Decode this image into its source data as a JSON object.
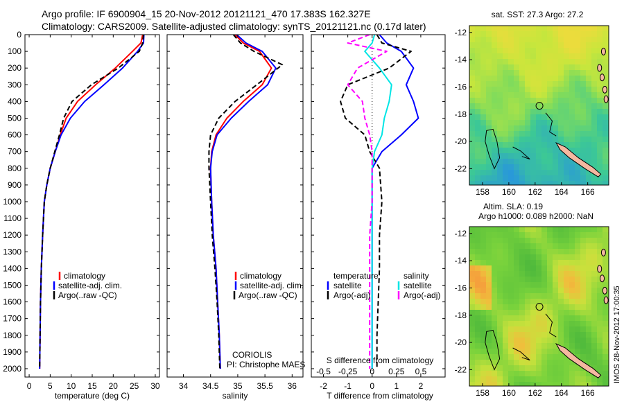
{
  "header": {
    "title_line1": "Argo profile: IF 6900904_15 20-Nov-2012 20121121_470 17.383S 162.327E",
    "title_line2": "Climatology: CARS2009. Satellite-adjusted climatology: synTS_20121121.nc (0.17d later)"
  },
  "footer": {
    "timestamp": "IMOS 28-Nov-2012 17:00:35"
  },
  "colors": {
    "climatology": "#ff0000",
    "satellite": "#0000ff",
    "argo": "#000000",
    "salinity_satellite": "#00e5e5",
    "salinity_argo": "#ff00ff",
    "coast_fill": "#f4b8a0"
  },
  "chart_data": [
    {
      "type": "line",
      "xlabel": "temperature (deg C)",
      "ylabel": "",
      "xlim": [
        -1,
        31
      ],
      "ylim": [
        2050,
        0
      ],
      "xticks": [
        0,
        5,
        10,
        15,
        20,
        25,
        30
      ],
      "yticks": [
        0,
        100,
        200,
        300,
        400,
        500,
        600,
        700,
        800,
        900,
        1000,
        1100,
        1200,
        1300,
        1400,
        1500,
        1600,
        1700,
        1800,
        1900,
        2000
      ],
      "legend": [
        "climatology",
        "satellite-adj. clim.",
        "Argo(..raw -QC)"
      ],
      "legend_position": "lower-center",
      "annotations": [],
      "series": [
        {
          "name": "climatology",
          "color": "#ff0000",
          "dash": "",
          "x": [
            27.0,
            26.6,
            24.6,
            20.5,
            15.8,
            11.5,
            8.8,
            7.4,
            6.2,
            5.0,
            4.2,
            3.6,
            3.2,
            2.9,
            2.7,
            2.6,
            2.5
          ],
          "y": [
            0,
            50,
            100,
            200,
            300,
            400,
            500,
            600,
            700,
            800,
            900,
            1000,
            1200,
            1400,
            1600,
            1800,
            2000
          ]
        },
        {
          "name": "satellite-adj. clim.",
          "color": "#0000ff",
          "dash": "",
          "x": [
            27.3,
            27.2,
            25.8,
            22.2,
            17.8,
            13.2,
            9.8,
            7.6,
            6.2,
            5.0,
            4.2,
            3.6,
            3.2,
            2.9,
            2.7,
            2.6,
            2.5
          ],
          "y": [
            0,
            50,
            100,
            200,
            300,
            400,
            500,
            600,
            700,
            800,
            900,
            1000,
            1200,
            1400,
            1600,
            1800,
            2000
          ]
        },
        {
          "name": "Argo(..raw -QC)",
          "color": "#000000",
          "dash": "7,4",
          "x": [
            27.2,
            27.0,
            26.2,
            21.2,
            14.8,
            10.2,
            8.2,
            7.2,
            6.1,
            5.0,
            4.2,
            3.6,
            3.2,
            2.9,
            2.7,
            2.6,
            2.5
          ],
          "y": [
            0,
            50,
            100,
            200,
            300,
            400,
            500,
            600,
            700,
            800,
            900,
            1000,
            1200,
            1400,
            1600,
            1800,
            2000
          ]
        }
      ]
    },
    {
      "type": "line",
      "xlabel": "salinity",
      "ylabel": "",
      "xlim": [
        33.7,
        36.2
      ],
      "ylim": [
        2050,
        0
      ],
      "xticks": [
        34,
        34.5,
        35,
        35.5,
        36
      ],
      "yticks": [
        0,
        100,
        200,
        300,
        400,
        500,
        600,
        700,
        800,
        900,
        1000,
        1100,
        1200,
        1300,
        1400,
        1500,
        1600,
        1700,
        1800,
        1900,
        2000
      ],
      "legend": [
        "climatology",
        "satellite-adj. clim.",
        "Argo(..raw -QC)"
      ],
      "legend_position": "lower-right",
      "annotations": [
        "CORIOLIS",
        "PI: Christophe MAES"
      ],
      "series": [
        {
          "name": "climatology",
          "color": "#ff0000",
          "dash": "",
          "x": [
            34.95,
            35.1,
            35.4,
            35.62,
            35.45,
            35.1,
            34.8,
            34.6,
            34.52,
            34.5,
            34.52,
            34.55,
            34.6,
            34.63,
            34.66,
            34.68
          ],
          "y": [
            0,
            50,
            100,
            200,
            300,
            400,
            500,
            600,
            700,
            800,
            1000,
            1200,
            1400,
            1600,
            1800,
            2000
          ]
        },
        {
          "name": "satellite-adj. clim.",
          "color": "#0000ff",
          "dash": "",
          "x": [
            34.98,
            35.15,
            35.45,
            35.7,
            35.55,
            35.2,
            34.88,
            34.62,
            34.53,
            34.5,
            34.52,
            34.55,
            34.6,
            34.63,
            34.66,
            34.68
          ],
          "y": [
            0,
            50,
            100,
            200,
            300,
            400,
            500,
            600,
            700,
            800,
            1000,
            1200,
            1400,
            1600,
            1800,
            2000
          ]
        },
        {
          "name": "Argo(..raw -QC)",
          "color": "#000000",
          "dash": "7,4",
          "x": [
            34.92,
            35.05,
            35.3,
            35.82,
            35.35,
            34.95,
            34.65,
            34.5,
            34.47,
            34.47,
            34.5,
            34.53,
            34.58,
            34.62,
            34.65,
            34.67
          ],
          "y": [
            0,
            50,
            100,
            180,
            300,
            400,
            500,
            600,
            700,
            800,
            1000,
            1200,
            1400,
            1600,
            1800,
            2000
          ]
        }
      ]
    },
    {
      "type": "line",
      "xlabel": "T difference from climatology",
      "ylabel": "",
      "title_bottom": "S difference from climatology",
      "xlim": [
        -2.5,
        3
      ],
      "ylim": [
        2050,
        0
      ],
      "xticks": [
        -2,
        -1,
        0,
        1,
        2
      ],
      "s_ticks": [
        "-0.5",
        "-0.25",
        "0",
        "0.25",
        "0.5"
      ],
      "yticks": [
        0,
        100,
        200,
        300,
        400,
        500,
        600,
        700,
        800,
        900,
        1000,
        1100,
        1200,
        1300,
        1400,
        1500,
        1600,
        1700,
        1800,
        1900,
        2000
      ],
      "legend_temperature_title": "temperature",
      "legend_salinity_title": "salinity",
      "legend_temperature": [
        "satellite",
        "Argo(-adj)"
      ],
      "legend_salinity": [
        "satellite",
        "Argo(-adj)"
      ],
      "legend_position": "lower-center",
      "series": [
        {
          "name": "temperature satellite",
          "color": "#0000ff",
          "dash": "",
          "x": [
            0.3,
            0.6,
            1.2,
            1.7,
            1.4,
            1.7,
            1.9,
            1.2,
            0.4,
            0.0,
            0.0,
            0.0,
            0.0,
            0.0,
            0.0
          ],
          "y": [
            0,
            50,
            100,
            200,
            300,
            400,
            500,
            600,
            700,
            800,
            1000,
            1200,
            1400,
            1800,
            2000
          ]
        },
        {
          "name": "temperature Argo(-adj)",
          "color": "#000000",
          "dash": "7,4",
          "x": [
            0.2,
            0.4,
            1.6,
            0.7,
            -1.0,
            -1.3,
            -1.1,
            -0.3,
            -0.1,
            0.3,
            0.4,
            0.3,
            0.3,
            0.2,
            0.2
          ],
          "y": [
            0,
            50,
            100,
            200,
            300,
            400,
            500,
            600,
            700,
            800,
            1000,
            1200,
            1400,
            1800,
            2000
          ]
        },
        {
          "name": "salinity satellite",
          "color": "#00e5e5",
          "dash": "",
          "x": [
            0.1,
            0.0,
            -0.3,
            0.3,
            0.8,
            0.7,
            0.5,
            0.4,
            0.1,
            0.0,
            0.0,
            0.0,
            0.0,
            0.0,
            0.0
          ],
          "y": [
            0,
            50,
            100,
            200,
            300,
            400,
            500,
            600,
            700,
            800,
            1000,
            1200,
            1400,
            1800,
            2000
          ]
        },
        {
          "name": "salinity Argo(-adj)",
          "color": "#ff00ff",
          "dash": "7,4",
          "x": [
            -0.1,
            -1.0,
            0.6,
            -0.6,
            -1.0,
            -0.4,
            -0.3,
            -0.1,
            0.0,
            0.0,
            0.0,
            -0.1,
            -0.1,
            -0.1,
            -0.1
          ],
          "y": [
            0,
            50,
            100,
            200,
            300,
            400,
            500,
            600,
            700,
            800,
            1000,
            1200,
            1400,
            1800,
            2000
          ]
        }
      ]
    },
    {
      "type": "heatmap",
      "title": "sat. SST: 27.3 Argo: 27.2",
      "xlim": [
        157,
        167.6
      ],
      "ylim": [
        -23.2,
        -11.5
      ],
      "xticks": [
        158,
        160,
        162,
        164,
        166
      ],
      "yticks": [
        -12,
        -14,
        -16,
        -18,
        -20,
        -22
      ],
      "marker": {
        "lon": 162.33,
        "lat": -17.38
      },
      "palette": "sst"
    },
    {
      "type": "heatmap",
      "title_line1": "Altim. SLA: 0.19",
      "title_line2": "Argo h1000: 0.089 h2000: NaN",
      "xlim": [
        157,
        167.6
      ],
      "ylim": [
        -23.2,
        -11.5
      ],
      "xticks": [
        158,
        160,
        162,
        164,
        166
      ],
      "yticks": [
        -12,
        -14,
        -16,
        -18,
        -20,
        -22
      ],
      "marker": {
        "lon": 162.33,
        "lat": -17.38
      },
      "palette": "sla"
    }
  ]
}
